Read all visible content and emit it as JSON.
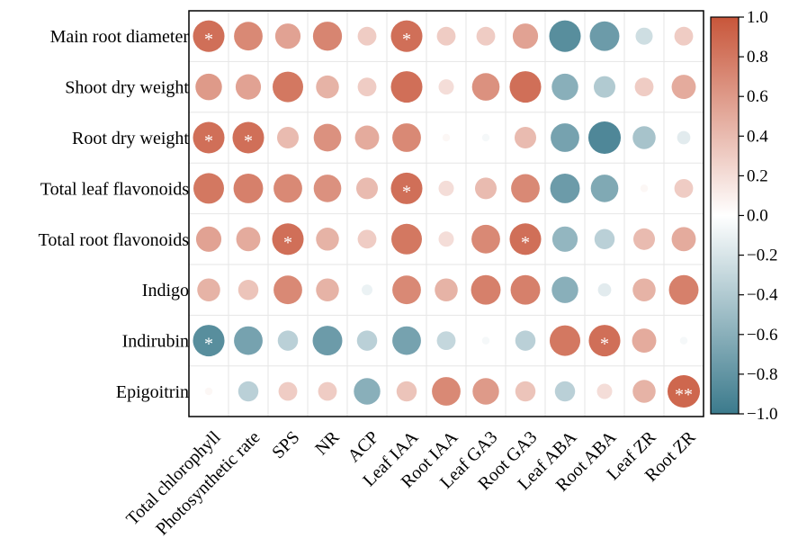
{
  "chart_data": {
    "type": "heatmap",
    "style": "correlation-bubble",
    "rows": [
      "Main root diameter",
      "Shoot dry weight",
      "Root dry weight",
      "Total leaf flavonoids",
      "Total root flavonoids",
      "Indigo",
      "Indirubin",
      "Epigoitrin"
    ],
    "columns": [
      "Total chlorophyll",
      "Photosynthetic rate",
      "SPS",
      "NR",
      "ACP",
      "Leaf IAA",
      "Root IAA",
      "Leaf GA3",
      "Root GA3",
      "Leaf ABA",
      "Root ABA",
      "Leaf ZR",
      "Root ZR"
    ],
    "values": [
      [
        0.85,
        0.7,
        0.55,
        0.72,
        0.3,
        0.85,
        0.3,
        0.3,
        0.55,
        -0.85,
        -0.75,
        -0.25,
        0.3
      ],
      [
        0.6,
        0.55,
        0.8,
        0.45,
        0.3,
        0.85,
        0.2,
        0.65,
        0.85,
        -0.6,
        -0.4,
        0.3,
        0.5
      ],
      [
        0.85,
        0.85,
        0.4,
        0.65,
        0.5,
        0.7,
        0.05,
        -0.05,
        0.4,
        -0.7,
        -0.9,
        -0.45,
        -0.15
      ],
      [
        0.8,
        0.75,
        0.7,
        0.65,
        0.4,
        0.85,
        0.2,
        0.4,
        0.7,
        -0.75,
        -0.65,
        0.05,
        0.3
      ],
      [
        0.55,
        0.5,
        0.85,
        0.45,
        0.3,
        0.8,
        0.2,
        0.7,
        0.85,
        -0.55,
        -0.35,
        0.4,
        0.5
      ],
      [
        0.45,
        0.35,
        0.7,
        0.45,
        -0.1,
        0.7,
        0.45,
        0.75,
        0.75,
        -0.6,
        -0.15,
        0.45,
        0.75
      ],
      [
        -0.85,
        -0.7,
        -0.35,
        -0.75,
        -0.35,
        -0.7,
        -0.3,
        -0.05,
        -0.35,
        0.8,
        0.85,
        0.5,
        -0.05
      ],
      [
        0.05,
        -0.35,
        0.3,
        0.3,
        -0.6,
        0.35,
        0.7,
        0.6,
        0.35,
        -0.35,
        0.2,
        0.45,
        0.9
      ]
    ],
    "significance": [
      [
        "*",
        "",
        "",
        "",
        "",
        "*",
        "",
        "",
        "",
        "",
        "",
        "",
        ""
      ],
      [
        "",
        "",
        "",
        "",
        "",
        "",
        "",
        "",
        "",
        "",
        "",
        "",
        ""
      ],
      [
        "*",
        "*",
        "",
        "",
        "",
        "",
        "",
        "",
        "",
        "",
        "",
        "",
        ""
      ],
      [
        "",
        "",
        "",
        "",
        "",
        "*",
        "",
        "",
        "",
        "",
        "",
        "",
        ""
      ],
      [
        "",
        "",
        "*",
        "",
        "",
        "",
        "",
        "",
        "*",
        "",
        "",
        "",
        ""
      ],
      [
        "",
        "",
        "",
        "",
        "",
        "",
        "",
        "",
        "",
        "",
        "",
        "",
        ""
      ],
      [
        "*",
        "",
        "",
        "",
        "",
        "",
        "",
        "",
        "",
        "",
        "*",
        "",
        ""
      ],
      [
        "",
        "",
        "",
        "",
        "",
        "",
        "",
        "",
        "",
        "",
        "",
        "",
        "**"
      ]
    ],
    "colorbar": {
      "min": -1.0,
      "max": 1.0,
      "ticks": [
        1.0,
        0.8,
        0.6,
        0.4,
        0.2,
        0.0,
        -0.2,
        -0.4,
        -0.6,
        -0.8,
        -1.0
      ],
      "tick_labels": [
        "1.0",
        "0.8",
        "0.6",
        "0.4",
        "0.2",
        "0.0",
        "−0.2",
        "−0.4",
        "−0.6",
        "−0.8",
        "−1.0"
      ],
      "placement": "right"
    },
    "colors": {
      "positive": "#c8563a",
      "neutral": "#ffffff",
      "negative": "#3b7a8c",
      "grid": "#e6e6e6",
      "frame": "#000000"
    },
    "grid": true
  }
}
